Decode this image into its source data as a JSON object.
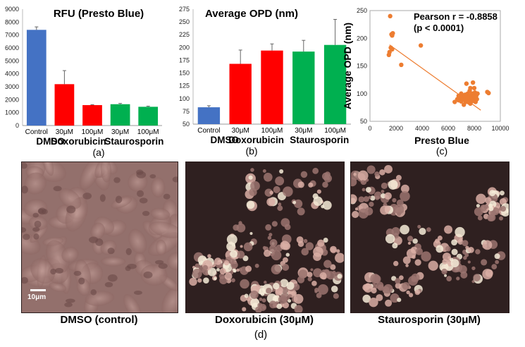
{
  "colors": {
    "control": "#4472c4",
    "doxorubicin": "#ff0000",
    "staurosporin": "#00b050",
    "scatter": "#ed7d31",
    "trend": "#ed7d31"
  },
  "chart_data": [
    {
      "id": "a",
      "type": "bar",
      "title": "RFU (Presto Blue)",
      "panel_label": "(a)",
      "categories": [
        "Control",
        "30μM",
        "100μM",
        "30μM",
        "100μM"
      ],
      "groups": [
        "DMSO",
        "Doxorubicin",
        "Staurosporin"
      ],
      "values": [
        7400,
        3200,
        1580,
        1650,
        1450
      ],
      "errors": [
        230,
        1050,
        30,
        60,
        50
      ],
      "bar_colors": [
        "control",
        "doxorubicin",
        "doxorubicin",
        "staurosporin",
        "staurosporin"
      ],
      "ylim": [
        0,
        9000
      ],
      "yticks": [
        "0",
        "1000",
        "2000",
        "3000",
        "4000",
        "5000",
        "6000",
        "7000",
        "8000",
        "9000"
      ],
      "grid": false
    },
    {
      "id": "b",
      "type": "bar",
      "title": "Average OPD (nm)",
      "panel_label": "(b)",
      "categories": [
        "Control",
        "30μM",
        "100μM",
        "30μM",
        "100μM"
      ],
      "groups": [
        "DMSO",
        "Doxorubicin",
        "Staurosporin"
      ],
      "values": [
        83,
        168,
        194,
        192,
        205
      ],
      "errors": [
        3,
        27,
        13,
        22,
        50
      ],
      "bar_colors": [
        "control",
        "doxorubicin",
        "doxorubicin",
        "staurosporin",
        "staurosporin"
      ],
      "ylim": [
        50,
        275
      ],
      "yticks": [
        "50",
        "75",
        "100",
        "125",
        "150",
        "175",
        "200",
        "225",
        "250",
        "275"
      ],
      "grid": false
    },
    {
      "id": "c",
      "type": "scatter",
      "xlabel": "Presto Blue",
      "ylabel": "Average OPD (nm)",
      "panel_label": "(c)",
      "annotation": [
        "Pearson r = -0.8858",
        "(p < 0.0001)"
      ],
      "xlim": [
        0,
        10000
      ],
      "ylim": [
        50,
        250
      ],
      "xticks": [
        "0",
        "2000",
        "4000",
        "6000",
        "8000",
        "10000"
      ],
      "yticks": [
        "50",
        "100",
        "150",
        "200",
        "250"
      ],
      "trendline": [
        [
          1500,
          188
        ],
        [
          8500,
          70
        ]
      ],
      "points": [
        [
          1550,
          240
        ],
        [
          1700,
          205
        ],
        [
          1650,
          207
        ],
        [
          1750,
          209
        ],
        [
          1600,
          183
        ],
        [
          1700,
          180
        ],
        [
          1450,
          170
        ],
        [
          1500,
          175
        ],
        [
          2400,
          152
        ],
        [
          3900,
          187
        ],
        [
          6500,
          85
        ],
        [
          6700,
          90
        ],
        [
          6800,
          88
        ],
        [
          6900,
          92
        ],
        [
          7000,
          86
        ],
        [
          7100,
          95
        ],
        [
          7200,
          80
        ],
        [
          7300,
          98
        ],
        [
          7350,
          85
        ],
        [
          7400,
          118
        ],
        [
          7450,
          92
        ],
        [
          7500,
          100
        ],
        [
          7550,
          88
        ],
        [
          7600,
          95
        ],
        [
          7650,
          105
        ],
        [
          7700,
          82
        ],
        [
          7750,
          92
        ],
        [
          7800,
          98
        ],
        [
          7850,
          88
        ],
        [
          7900,
          100
        ],
        [
          7950,
          92
        ],
        [
          8000,
          95
        ],
        [
          8050,
          102
        ],
        [
          8100,
          85
        ],
        [
          8150,
          96
        ],
        [
          8200,
          90
        ],
        [
          8250,
          100
        ],
        [
          7200,
          92
        ],
        [
          7400,
          96
        ],
        [
          7600,
          84
        ],
        [
          7800,
          86
        ],
        [
          7000,
          100
        ],
        [
          7100,
          89
        ],
        [
          7900,
          120
        ],
        [
          8000,
          110
        ],
        [
          8050,
          86
        ],
        [
          6800,
          96
        ],
        [
          7300,
          90
        ],
        [
          7500,
          93
        ],
        [
          7700,
          110
        ],
        [
          9000,
          103
        ],
        [
          9100,
          101
        ]
      ]
    }
  ],
  "micrographs": {
    "panel_label": "(d)",
    "scale_bar": "10μm",
    "captions": [
      "DMSO (control)",
      "Doxorubicin (30μM)",
      "Staurosporin (30μM)"
    ]
  }
}
